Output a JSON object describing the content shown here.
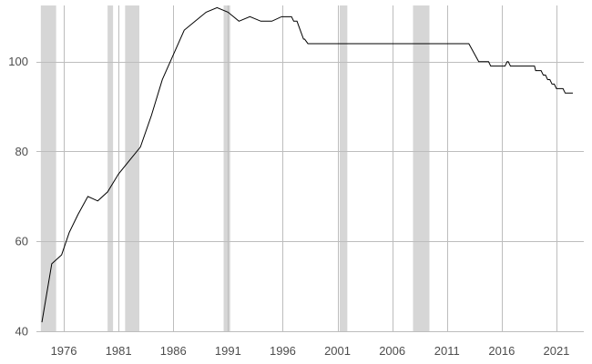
{
  "chart_data": {
    "type": "line",
    "title": "",
    "xlabel": "",
    "ylabel": "",
    "xlim": [
      1973.5,
      2023.5
    ],
    "ylim": [
      40,
      112.5
    ],
    "x_ticks": [
      1976,
      1981,
      1986,
      1991,
      1996,
      2001,
      2006,
      2011,
      2016,
      2021
    ],
    "y_ticks": [
      40,
      60,
      80,
      100
    ],
    "grid": true,
    "legend": "none",
    "line_color": "#000000",
    "band_color": "#d6d6d6",
    "grid_color": "#bdbdbd",
    "recession_bands": [
      [
        1973.9,
        1975.3
      ],
      [
        1980.0,
        1980.5
      ],
      [
        1981.6,
        1982.9
      ],
      [
        1990.6,
        1991.2
      ],
      [
        2001.2,
        2001.9
      ],
      [
        2007.9,
        2009.4
      ]
    ],
    "series": [
      {
        "x": [
          1974.0,
          1974.9,
          1975.8,
          1976.5,
          1977.3,
          1978.2,
          1979.1,
          1980.0,
          1981.0,
          1982.0,
          1983.0,
          1984.0,
          1985.0,
          1986.0,
          1987.0,
          1988.0,
          1989.0,
          1990.0,
          1991.0,
          1992.0,
          1993.0,
          1994.0,
          1995.0,
          1995.9,
          1996.0,
          1996.8,
          1997.0,
          1997.3,
          1997.6,
          1997.9,
          1998.0,
          1998.3,
          2013.0,
          2013.9,
          2014.0,
          2014.8,
          2015.0,
          2016.3,
          2016.5,
          2016.6,
          2016.8,
          2019.0,
          2019.1,
          2019.6,
          2019.8,
          2020.0,
          2020.2,
          2020.4,
          2020.6,
          2020.8,
          2021.0,
          2021.2,
          2021.4,
          2021.6,
          2021.8,
          2022.0,
          2022.3,
          2022.5
        ],
        "values": [
          42.0,
          55.0,
          57.0,
          62.0,
          66.0,
          70.0,
          69.0,
          71.0,
          75.0,
          78.0,
          81.0,
          88.0,
          96.0,
          101.5,
          107.0,
          109.0,
          111.0,
          112.0,
          111.0,
          109.0,
          110.0,
          109.0,
          109.0,
          110.0,
          110.0,
          110.0,
          109.0,
          109.0,
          107.0,
          105.0,
          105.0,
          104.0,
          104.0,
          100.0,
          100.0,
          100.0,
          99.0,
          99.0,
          100.0,
          100.0,
          99.0,
          99.0,
          98.0,
          98.0,
          97.0,
          97.0,
          96.0,
          96.0,
          95.0,
          95.0,
          94.0,
          94.0,
          94.0,
          94.0,
          93.0,
          93.0,
          93.0,
          93.0
        ]
      }
    ]
  }
}
